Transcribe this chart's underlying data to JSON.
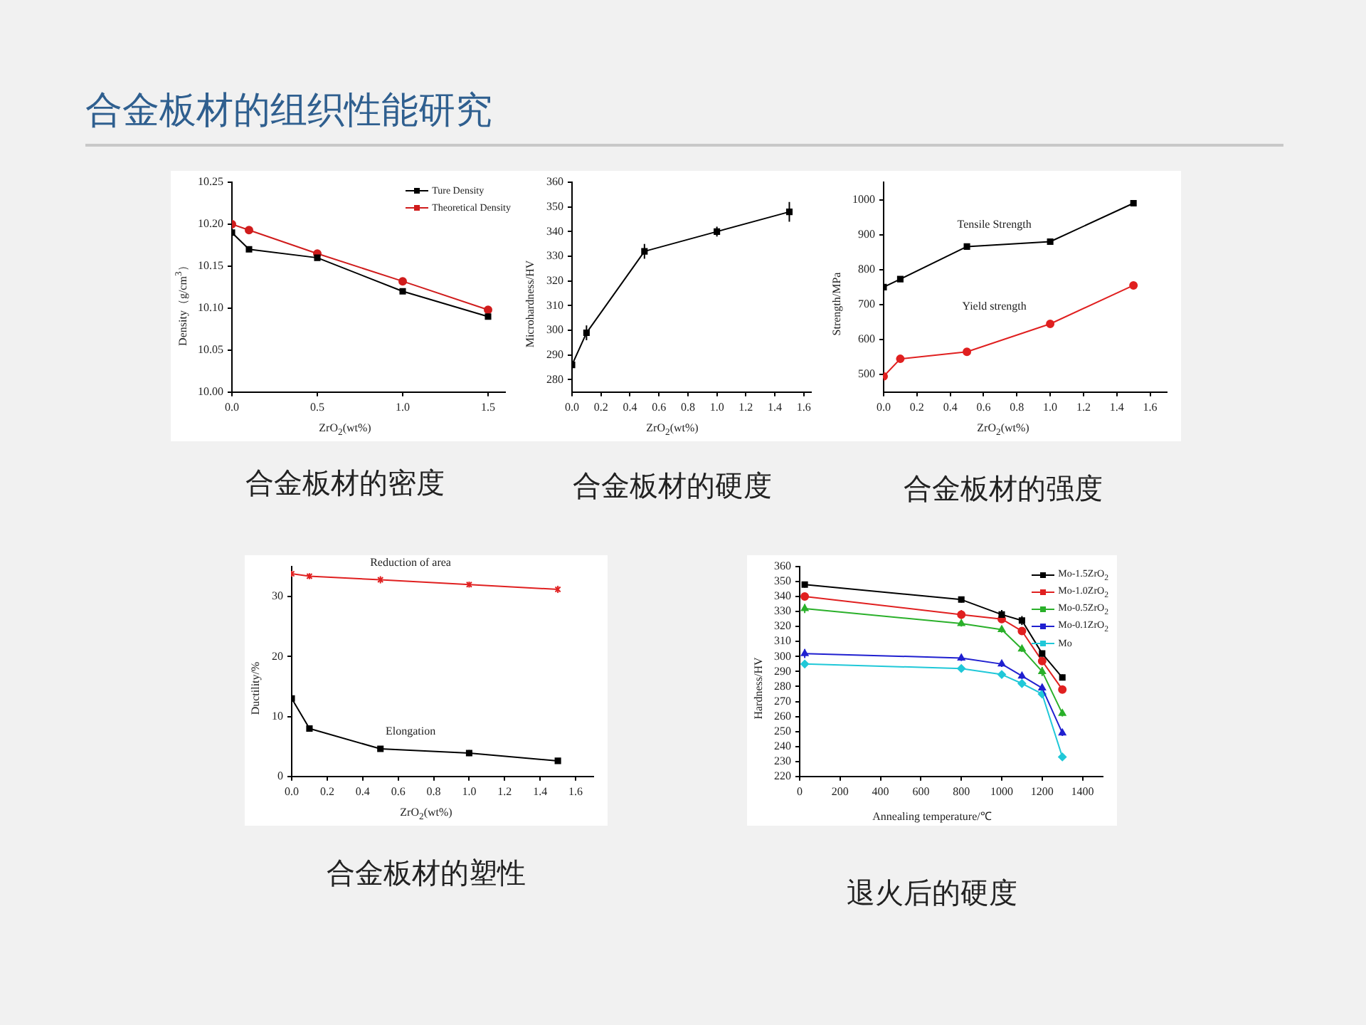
{
  "chart_data": [
    {
      "type": "line",
      "title": "合金板材的密度",
      "annotations": [
        "合金板材的组织性能研究"
      ],
      "xlabel": "ZrO$_{2}$(wt%)",
      "ylabel": "Density（g/cm$^{3}$）",
      "legend": "top right",
      "xlim": [
        0,
        1.6
      ],
      "xticks": [
        {
          "value": 0,
          "label": "0.0"
        },
        {
          "value": 0.5,
          "label": "0.5"
        },
        {
          "value": 1,
          "label": "1.0"
        },
        {
          "value": 1.5,
          "label": "1.5"
        }
      ],
      "ylim": [
        10,
        10.25
      ],
      "yticks": [
        {
          "value": 10,
          "label": "10.00"
        },
        {
          "value": 10.05,
          "label": "10.05"
        },
        {
          "value": 10.1,
          "label": "10.10"
        },
        {
          "value": 10.15,
          "label": "10.15"
        },
        {
          "value": 10.2,
          "label": "10.20"
        },
        {
          "value": 10.25,
          "label": "10.25"
        }
      ],
      "series": [
        {
          "name": "Ture Density",
          "color": "#000000",
          "marker": "square",
          "x": [
            0,
            0.1,
            0.5,
            1,
            1.5
          ],
          "values": [
            10.19,
            10.17,
            10.16,
            10.12,
            10.09
          ]
        },
        {
          "name": "Theoretical Density",
          "color": "#d01c1c",
          "marker": "circle",
          "x": [
            0,
            0.1,
            0.5,
            1,
            1.5
          ],
          "values": [
            10.2,
            10.193,
            10.165,
            10.132,
            10.098
          ]
        }
      ]
    },
    {
      "type": "line",
      "title": "合金板材的硬度",
      "xlabel": "ZrO$_{2}$(wt%)",
      "ylabel": "Microhardness/HV",
      "xlim": [
        0,
        1.65
      ],
      "xticks": [
        {
          "value": 0,
          "label": "0.0"
        },
        {
          "value": 0.2,
          "label": "0.2"
        },
        {
          "value": 0.4,
          "label": "0.4"
        },
        {
          "value": 0.6,
          "label": "0.6"
        },
        {
          "value": 0.8,
          "label": "0.8"
        },
        {
          "value": 1,
          "label": "1.0"
        },
        {
          "value": 1.2,
          "label": "1.2"
        },
        {
          "value": 1.4,
          "label": "1.4"
        },
        {
          "value": 1.6,
          "label": "1.6"
        }
      ],
      "ylim": [
        275,
        360
      ],
      "yticks": [
        280,
        290,
        300,
        310,
        320,
        330,
        340,
        350,
        360
      ],
      "series": [
        {
          "color": "#000000",
          "marker": "square",
          "x": [
            0,
            0.1,
            0.5,
            1,
            1.5
          ],
          "values": [
            286,
            299,
            332,
            340,
            348
          ],
          "errors": [
            1,
            3,
            3,
            2,
            4
          ]
        }
      ]
    },
    {
      "type": "line",
      "title": "合金板材的强度",
      "xlabel": "ZrO$_{2}$(wt%)",
      "ylabel": "Strength/MPa",
      "xlim": [
        0,
        1.7
      ],
      "xticks": [
        {
          "value": 0,
          "label": "0.0"
        },
        {
          "value": 0.2,
          "label": "0.2"
        },
        {
          "value": 0.4,
          "label": "0.4"
        },
        {
          "value": 0.6,
          "label": "0.6"
        },
        {
          "value": 0.8,
          "label": "0.8"
        },
        {
          "value": 1,
          "label": "1.0"
        },
        {
          "value": 1.2,
          "label": "1.2"
        },
        {
          "value": 1.4,
          "label": "1.4"
        },
        {
          "value": 1.6,
          "label": "1.6"
        }
      ],
      "ylim": [
        450,
        1050
      ],
      "yticks": [
        500,
        600,
        700,
        800,
        900,
        1000
      ],
      "series": [
        {
          "name": "Tensile Strength",
          "color": "#000000",
          "marker": "square",
          "x": [
            0,
            0.1,
            0.5,
            1,
            1.5
          ],
          "values": [
            750,
            773,
            866,
            880,
            990
          ],
          "errors": [
            5,
            6,
            6,
            7,
            8
          ]
        },
        {
          "name": "Yield strength",
          "color": "#e02020",
          "marker": "circle",
          "x": [
            0,
            0.1,
            0.5,
            1,
            1.5
          ],
          "values": [
            495,
            545,
            565,
            645,
            755
          ],
          "errors": [
            6,
            8,
            7,
            6,
            9
          ]
        }
      ]
    },
    {
      "type": "line",
      "title": "合金板材的塑性",
      "xlabel": "ZrO$_{2}$(wt%)",
      "ylabel": "Ductility/%",
      "xlim": [
        0,
        1.7
      ],
      "xticks": [
        {
          "value": 0,
          "label": "0.0"
        },
        {
          "value": 0.2,
          "label": "0.2"
        },
        {
          "value": 0.4,
          "label": "0.4"
        },
        {
          "value": 0.6,
          "label": "0.6"
        },
        {
          "value": 0.8,
          "label": "0.8"
        },
        {
          "value": 1,
          "label": "1.0"
        },
        {
          "value": 1.2,
          "label": "1.2"
        },
        {
          "value": 1.4,
          "label": "1.4"
        },
        {
          "value": 1.6,
          "label": "1.6"
        }
      ],
      "ylim": [
        0,
        35
      ],
      "yticks": [
        0,
        10,
        20,
        30
      ],
      "series": [
        {
          "name": "Reduction of area",
          "color": "#e02020",
          "marker": "cross",
          "x": [
            0,
            0.1,
            0.5,
            1,
            1.5
          ],
          "values": [
            33.8,
            33.4,
            32.8,
            32,
            31.2
          ],
          "errors": [
            0.5,
            0.5,
            0.6,
            0.5,
            0.6
          ]
        },
        {
          "name": "Elongation",
          "color": "#000000",
          "marker": "square",
          "x": [
            0,
            0.1,
            0.5,
            1,
            1.5
          ],
          "values": [
            13,
            8,
            4.6,
            3.9,
            2.6
          ],
          "errors": [
            0.3,
            0.4,
            0.4,
            0.5,
            0.4
          ]
        }
      ]
    },
    {
      "type": "line",
      "title": "退火后的硬度",
      "xlabel": "Annealing temperature/℃",
      "ylabel": "Hardness/HV",
      "legend": "top right",
      "xlim": [
        0,
        1500
      ],
      "xticks": [
        0,
        200,
        400,
        600,
        800,
        1000,
        1200,
        1400
      ],
      "ylim": [
        220,
        360
      ],
      "yticks": [
        220,
        230,
        240,
        250,
        260,
        270,
        280,
        290,
        300,
        310,
        320,
        330,
        340,
        350,
        360
      ],
      "series": [
        {
          "name": "Mo-1.5ZrO$_{2}$",
          "color": "#000000",
          "marker": "square",
          "x": [
            25,
            800,
            1000,
            1100,
            1200,
            1300
          ],
          "values": [
            348,
            338,
            328,
            324,
            302,
            286
          ],
          "errors": [
            2,
            2,
            3,
            3,
            2,
            2
          ]
        },
        {
          "name": "Mo-1.0ZrO$_{2}$",
          "color": "#e02020",
          "marker": "circle",
          "x": [
            25,
            800,
            1000,
            1100,
            1200,
            1300
          ],
          "values": [
            340,
            328,
            325,
            317,
            297,
            278
          ],
          "errors": [
            2,
            3,
            2,
            2,
            2,
            2
          ]
        },
        {
          "name": "Mo-0.5ZrO$_{2}$",
          "color": "#2ab02a",
          "marker": "triangle",
          "x": [
            25,
            800,
            1000,
            1100,
            1200,
            1300
          ],
          "values": [
            332,
            322,
            318,
            305,
            290,
            262
          ],
          "errors": [
            3,
            2,
            2,
            2,
            3,
            2
          ]
        },
        {
          "name": "Mo-0.1ZrO$_{2}$",
          "color": "#2020d0",
          "marker": "triangle",
          "x": [
            25,
            800,
            1000,
            1100,
            1200,
            1300
          ],
          "values": [
            302,
            299,
            295,
            287,
            279,
            249
          ],
          "errors": [
            3,
            2,
            2,
            2,
            2,
            2
          ]
        },
        {
          "name": "Mo",
          "color": "#20c8d8",
          "marker": "diamond",
          "x": [
            25,
            800,
            1000,
            1100,
            1200,
            1300
          ],
          "values": [
            295,
            292,
            288,
            282,
            275,
            233
          ],
          "errors": [
            2,
            2,
            2,
            2,
            2,
            2
          ]
        }
      ]
    }
  ]
}
